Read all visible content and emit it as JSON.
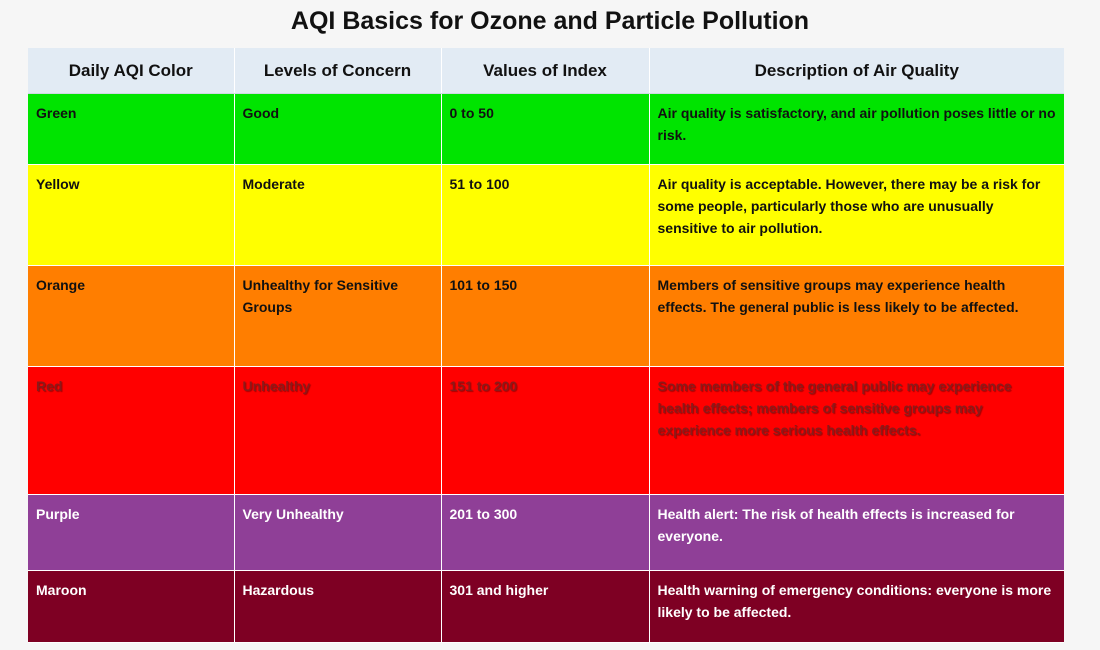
{
  "title": "AQI Basics for Ozone and Particle Pollution",
  "headers": [
    "Daily AQI Color",
    "Levels of Concern",
    "Values of Index",
    "Description of Air Quality"
  ],
  "rows": [
    {
      "color": "Green",
      "level": "Good",
      "values": "0 to 50",
      "description": "Air quality is satisfactory, and air pollution poses little or no risk.",
      "bg": "#00e400",
      "text": "#111111"
    },
    {
      "color": "Yellow",
      "level": "Moderate",
      "values": "51 to 100",
      "description": "Air quality is acceptable. However, there may be a risk for some people, particularly those who are unusually sensitive to air pollution.",
      "bg": "#ffff00",
      "text": "#111111"
    },
    {
      "color": "Orange",
      "level": "Unhealthy for Sensitive Groups",
      "values": "101 to 150",
      "description": "Members of sensitive groups may experience health effects. The general public is less likely to be affected.",
      "bg": "#ff7e00",
      "text": "#111111"
    },
    {
      "color": "Red",
      "level": "Unhealthy",
      "values": "151 to 200",
      "description": "Some members of the general public may experience health effects; members of sensitive groups may experience more serious health effects.",
      "bg": "#ff0000",
      "text": "#8a1a1a"
    },
    {
      "color": "Purple",
      "level": "Very Unhealthy",
      "values": "201 to 300",
      "description": "Health alert: The risk of health effects is increased for everyone.",
      "bg": "#8f3f97",
      "text": "#ffffff"
    },
    {
      "color": "Maroon",
      "level": "Hazardous",
      "values": "301 and higher",
      "description": "Health warning of emergency conditions: everyone is more likely to be affected.",
      "bg": "#7e0023",
      "text": "#ffffff"
    }
  ]
}
